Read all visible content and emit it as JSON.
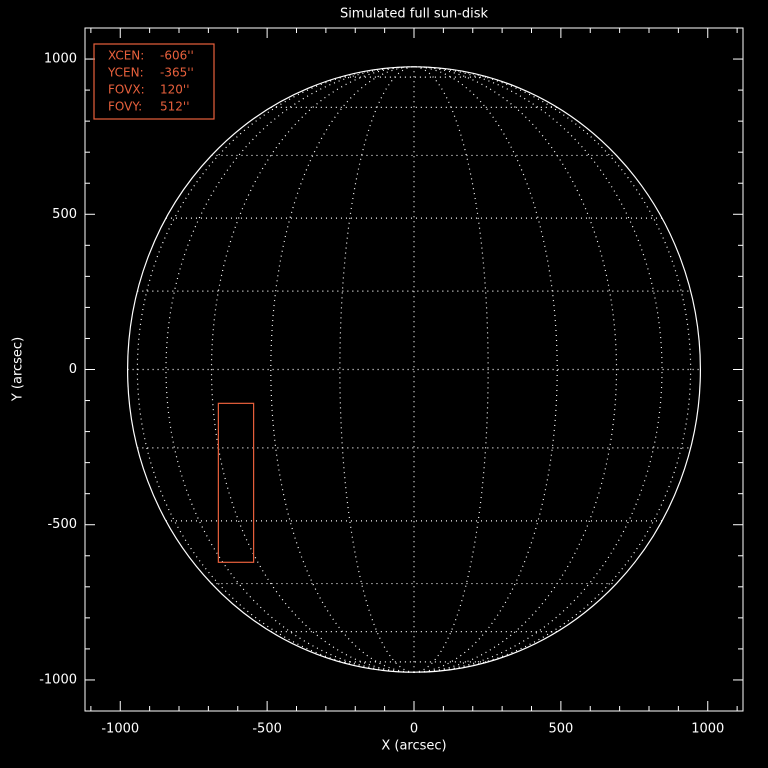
{
  "chart_data": {
    "type": "sun-disk",
    "title": "Simulated full sun-disk",
    "xlabel": "X (arcsec)",
    "ylabel": "Y (arcsec)",
    "xlim": [
      -1120,
      1120
    ],
    "ylim": [
      -1100,
      1100
    ],
    "xticks": [
      -1000,
      -500,
      0,
      500,
      1000
    ],
    "yticks": [
      -1000,
      -500,
      0,
      500,
      1000
    ],
    "xminor_ticks": [
      -1100,
      -900,
      -800,
      -700,
      -600,
      -400,
      -300,
      -200,
      -100,
      100,
      200,
      300,
      400,
      600,
      700,
      800,
      900,
      1100
    ],
    "yminor_ticks": [
      -1100,
      -900,
      -800,
      -700,
      -600,
      -400,
      -300,
      -200,
      -100,
      100,
      200,
      300,
      400,
      600,
      700,
      800,
      900,
      1100
    ],
    "solar_radius": 975,
    "grid_spacing_deg": 15,
    "fov": {
      "names": [
        "XCEN:",
        "YCEN:",
        "FOVX:",
        "FOVY:"
      ],
      "values": [
        -606,
        -365,
        120,
        512
      ],
      "value_labels": [
        "-606''",
        "-365''",
        "120''",
        "512''"
      ],
      "color": "#e8603c"
    }
  }
}
